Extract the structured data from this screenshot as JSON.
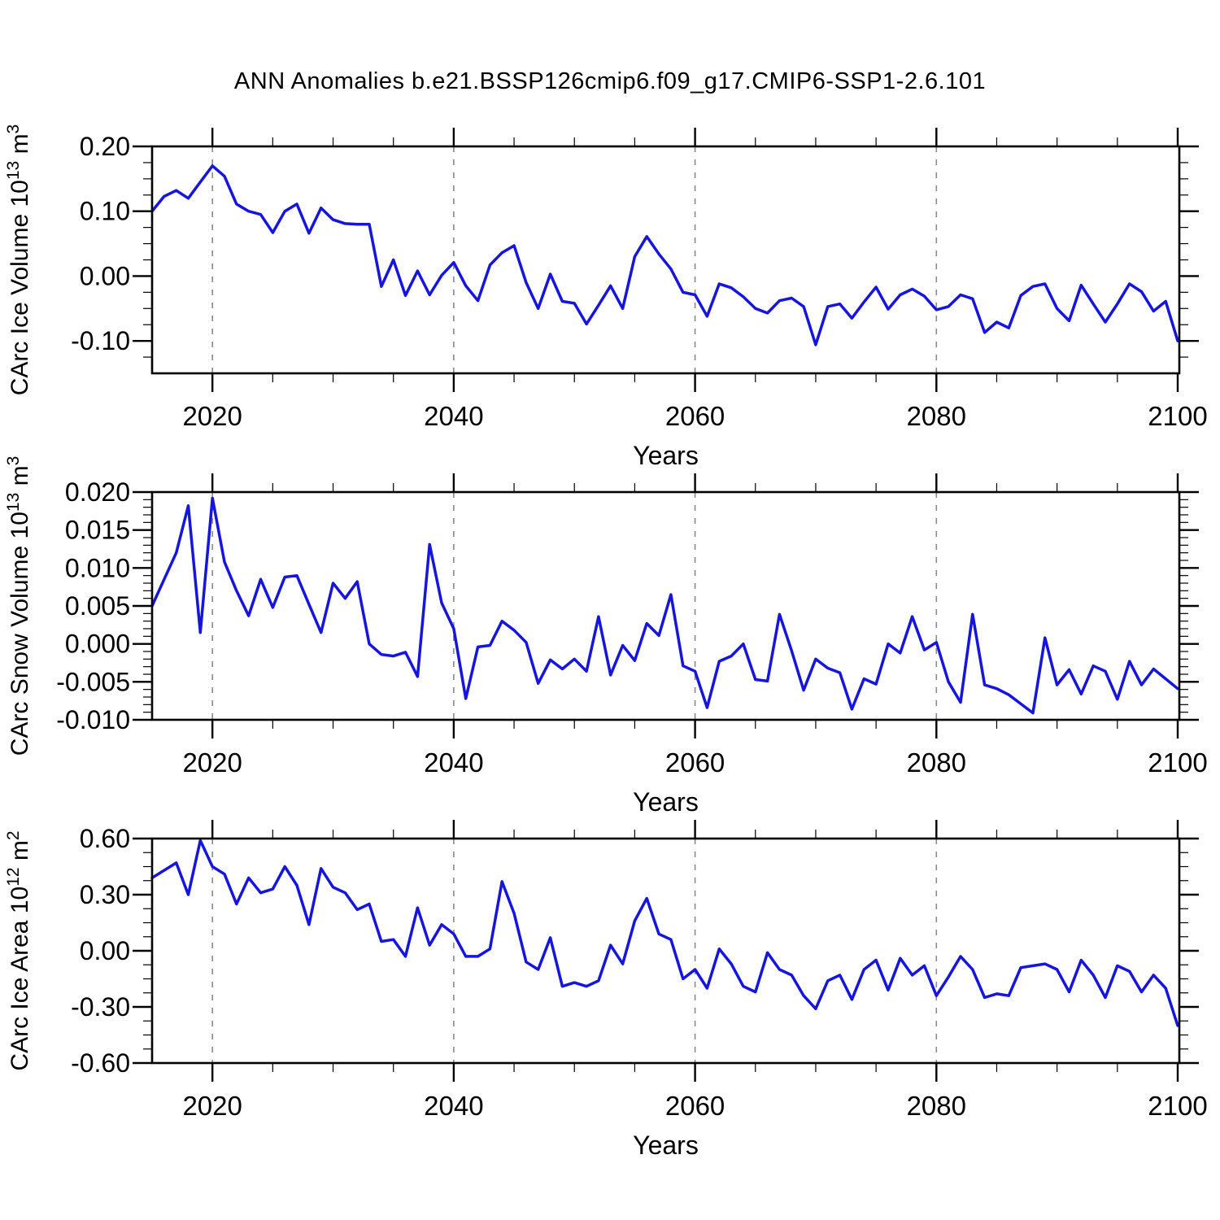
{
  "title": "ANN Anomalies b.e21.BSSP126cmip6.f09_g17.CMIP6-SSP1-2.6.101",
  "line_color": "#1515dd",
  "grid_color": "#8a8a8a",
  "chart_data": [
    {
      "type": "line",
      "series_name": "CArc Ice Volume",
      "ylabel_parts": [
        {
          "t": "CArc Ice Volume 10"
        },
        {
          "t": "13",
          "sup": 1
        },
        {
          "t": " m"
        },
        {
          "t": "3",
          "sup": 1
        }
      ],
      "xlabel": "Years",
      "x_start": 2015,
      "x_step": 1,
      "xlim": [
        2015,
        2100.15
      ],
      "xticks_major": [
        2020,
        2040,
        2060,
        2080,
        2100
      ],
      "x_minor_step": 5,
      "grid_x": [
        2020,
        2040,
        2060,
        2080
      ],
      "ylim": [
        -0.15,
        0.2
      ],
      "y_major_max": 0.2,
      "y_major_step": 0.1,
      "y_minor_step": 0.025,
      "y_decimals": 2,
      "values": [
        0.1,
        0.123,
        0.132,
        0.12,
        0.145,
        0.17,
        0.154,
        0.111,
        0.1,
        0.095,
        0.067,
        0.1,
        0.111,
        0.066,
        0.105,
        0.087,
        0.081,
        0.08,
        0.08,
        -0.016,
        0.025,
        -0.03,
        0.008,
        -0.029,
        0.001,
        0.021,
        -0.015,
        -0.038,
        0.017,
        0.036,
        0.047,
        -0.01,
        -0.05,
        0.003,
        -0.039,
        -0.042,
        -0.074,
        -0.045,
        -0.015,
        -0.05,
        0.03,
        0.061,
        0.034,
        0.011,
        -0.025,
        -0.029,
        -0.062,
        -0.012,
        -0.018,
        -0.032,
        -0.05,
        -0.057,
        -0.038,
        -0.034,
        -0.047,
        -0.106,
        -0.047,
        -0.043,
        -0.065,
        -0.04,
        -0.017,
        -0.051,
        -0.029,
        -0.02,
        -0.031,
        -0.052,
        -0.047,
        -0.029,
        -0.035,
        -0.087,
        -0.071,
        -0.08,
        -0.03,
        -0.016,
        -0.012,
        -0.05,
        -0.069,
        -0.014,
        -0.043,
        -0.071,
        -0.043,
        -0.012,
        -0.024,
        -0.054,
        -0.039,
        -0.1
      ]
    },
    {
      "type": "line",
      "series_name": "CArc Snow Volume",
      "ylabel_parts": [
        {
          "t": "CArc Snow Volume 10"
        },
        {
          "t": "13",
          "sup": 1
        },
        {
          "t": " m"
        },
        {
          "t": "3",
          "sup": 1
        }
      ],
      "xlabel": "Years",
      "x_start": 2015,
      "x_step": 1,
      "xlim": [
        2015,
        2100.15
      ],
      "xticks_major": [
        2020,
        2040,
        2060,
        2080,
        2100
      ],
      "x_minor_step": 5,
      "grid_x": [
        2020,
        2040,
        2060,
        2080
      ],
      "ylim": [
        -0.01,
        0.02
      ],
      "y_major_max": 0.02,
      "y_major_step": 0.005,
      "y_minor_step": 0.001,
      "y_decimals": 3,
      "values": [
        0.005,
        0.0085,
        0.012,
        0.0182,
        0.0015,
        0.0192,
        0.0108,
        0.007,
        0.0037,
        0.0085,
        0.0048,
        0.0088,
        0.009,
        0.0052,
        0.0015,
        0.008,
        0.006,
        0.0082,
        0.0,
        -0.0014,
        -0.0016,
        -0.0011,
        -0.0043,
        0.0131,
        0.0054,
        0.002,
        -0.0072,
        -0.0004,
        -0.0002,
        0.003,
        0.0018,
        0.0002,
        -0.0052,
        -0.0021,
        -0.0033,
        -0.002,
        -0.0036,
        0.0036,
        -0.0041,
        -0.0002,
        -0.0022,
        0.0027,
        0.0011,
        0.0065,
        -0.0029,
        -0.0036,
        -0.0084,
        -0.0023,
        -0.0016,
        0.0,
        -0.0047,
        -0.0049,
        0.0039,
        -0.0009,
        -0.0061,
        -0.002,
        -0.0032,
        -0.0038,
        -0.0086,
        -0.0046,
        -0.0053,
        0.0,
        -0.0012,
        0.0036,
        -0.0008,
        0.0002,
        -0.005,
        -0.0077,
        0.0039,
        -0.0054,
        -0.0059,
        -0.0067,
        -0.0079,
        -0.0091,
        0.0008,
        -0.0054,
        -0.0034,
        -0.0066,
        -0.0029,
        -0.0036,
        -0.0073,
        -0.0023,
        -0.0054,
        -0.0033,
        -0.0046,
        -0.0059
      ]
    },
    {
      "type": "line",
      "series_name": "CArc Ice Area",
      "ylabel_parts": [
        {
          "t": "CArc Ice Area 10"
        },
        {
          "t": "12",
          "sup": 1
        },
        {
          "t": " m"
        },
        {
          "t": "2",
          "sup": 1
        }
      ],
      "xlabel": "Years",
      "x_start": 2015,
      "x_step": 1,
      "xlim": [
        2015,
        2100.15
      ],
      "xticks_major": [
        2020,
        2040,
        2060,
        2080,
        2100
      ],
      "x_minor_step": 5,
      "grid_x": [
        2020,
        2040,
        2060,
        2080
      ],
      "ylim": [
        -0.6,
        0.6
      ],
      "y_major_max": 0.6,
      "y_major_step": 0.3,
      "y_minor_step": 0.075,
      "y_decimals": 2,
      "values": [
        0.39,
        0.43,
        0.47,
        0.3,
        0.59,
        0.45,
        0.41,
        0.25,
        0.39,
        0.31,
        0.33,
        0.45,
        0.35,
        0.14,
        0.44,
        0.34,
        0.31,
        0.22,
        0.25,
        0.05,
        0.06,
        -0.03,
        0.23,
        0.03,
        0.14,
        0.09,
        -0.03,
        -0.03,
        0.01,
        0.37,
        0.2,
        -0.06,
        -0.1,
        0.07,
        -0.19,
        -0.17,
        -0.19,
        -0.16,
        0.03,
        -0.07,
        0.16,
        0.28,
        0.09,
        0.06,
        -0.15,
        -0.1,
        -0.2,
        0.01,
        -0.07,
        -0.19,
        -0.22,
        -0.01,
        -0.1,
        -0.13,
        -0.24,
        -0.31,
        -0.16,
        -0.13,
        -0.26,
        -0.1,
        -0.05,
        -0.21,
        -0.04,
        -0.13,
        -0.08,
        -0.24,
        -0.14,
        -0.03,
        -0.1,
        -0.25,
        -0.23,
        -0.24,
        -0.09,
        -0.08,
        -0.07,
        -0.1,
        -0.22,
        -0.05,
        -0.13,
        -0.25,
        -0.08,
        -0.11,
        -0.22,
        -0.13,
        -0.2,
        -0.4
      ]
    }
  ]
}
